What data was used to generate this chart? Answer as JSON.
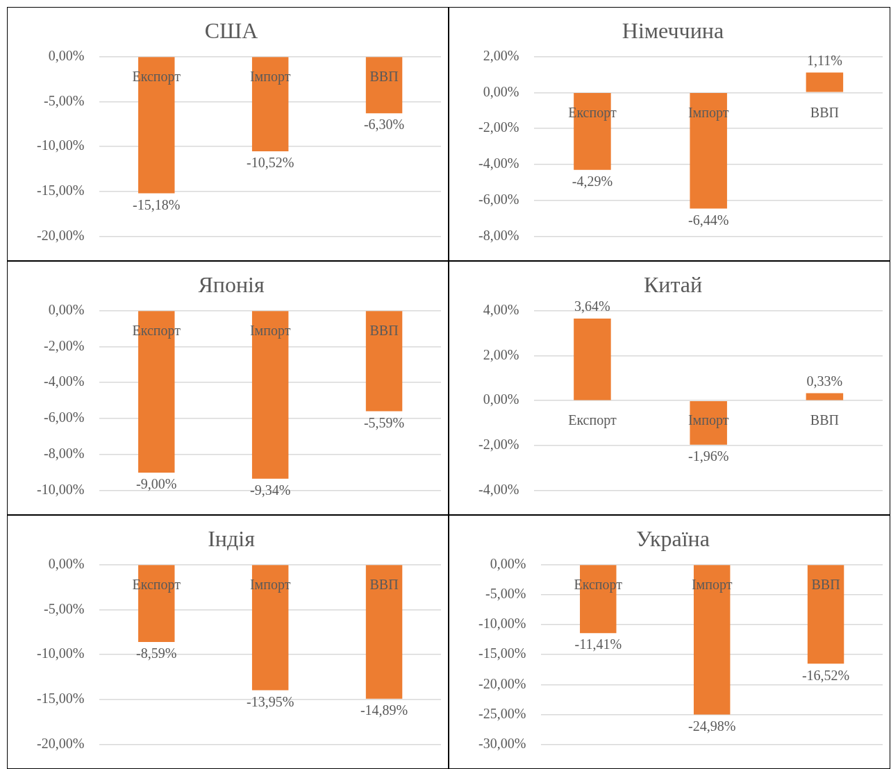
{
  "chart_data": [
    {
      "type": "bar",
      "title": "США",
      "categories": [
        "Експорт",
        "Імпорт",
        "ВВП"
      ],
      "values": [
        -15.18,
        -10.52,
        -6.3
      ],
      "value_labels": [
        "-15,18%",
        "-10,52%",
        "-6,30%"
      ],
      "color": "#ed7d31",
      "ylim": [
        -20,
        0
      ],
      "yticks": [
        {
          "value": 0,
          "label": "0,00%"
        },
        {
          "value": -5,
          "label": "-5,00%"
        },
        {
          "value": -10,
          "label": "-10,00%"
        },
        {
          "value": -15,
          "label": "-15,00%"
        },
        {
          "value": -20,
          "label": "-20,00%"
        }
      ],
      "grid": "y",
      "legend": false
    },
    {
      "type": "bar",
      "title": "Німеччина",
      "categories": [
        "Експорт",
        "Імпорт",
        "ВВП"
      ],
      "values": [
        -4.29,
        -6.44,
        1.11
      ],
      "value_labels": [
        "-4,29%",
        "-6,44%",
        "1,11%"
      ],
      "color": "#ed7d31",
      "ylim": [
        -8,
        2
      ],
      "yticks": [
        {
          "value": 2,
          "label": "2,00%"
        },
        {
          "value": 0,
          "label": "0,00%"
        },
        {
          "value": -2,
          "label": "-2,00%"
        },
        {
          "value": -4,
          "label": "-4,00%"
        },
        {
          "value": -6,
          "label": "-6,00%"
        },
        {
          "value": -8,
          "label": "-8,00%"
        }
      ],
      "grid": "y",
      "legend": false
    },
    {
      "type": "bar",
      "title": "Японія",
      "categories": [
        "Експорт",
        "Імпорт",
        "ВВП"
      ],
      "values": [
        -9.0,
        -9.34,
        -5.59
      ],
      "value_labels": [
        "-9,00%",
        "-9,34%",
        "-5,59%"
      ],
      "color": "#ed7d31",
      "ylim": [
        -10,
        0
      ],
      "yticks": [
        {
          "value": 0,
          "label": "0,00%"
        },
        {
          "value": -2,
          "label": "-2,00%"
        },
        {
          "value": -4,
          "label": "-4,00%"
        },
        {
          "value": -6,
          "label": "-6,00%"
        },
        {
          "value": -8,
          "label": "-8,00%"
        },
        {
          "value": -10,
          "label": "-10,00%"
        }
      ],
      "grid": "y",
      "legend": false
    },
    {
      "type": "bar",
      "title": "Китай",
      "categories": [
        "Експорт",
        "Імпорт",
        "ВВП"
      ],
      "values": [
        3.64,
        -1.96,
        0.33
      ],
      "value_labels": [
        "3,64%",
        "-1,96%",
        "0,33%"
      ],
      "color": "#ed7d31",
      "ylim": [
        -4,
        4
      ],
      "yticks": [
        {
          "value": 4,
          "label": "4,00%"
        },
        {
          "value": 2,
          "label": "2,00%"
        },
        {
          "value": 0,
          "label": "0,00%"
        },
        {
          "value": -2,
          "label": "-2,00%"
        },
        {
          "value": -4,
          "label": "-4,00%"
        }
      ],
      "grid": "y",
      "legend": false
    },
    {
      "type": "bar",
      "title": "Індія",
      "categories": [
        "Експорт",
        "Імпорт",
        "ВВП"
      ],
      "values": [
        -8.59,
        -13.95,
        -14.89
      ],
      "value_labels": [
        "-8,59%",
        "-13,95%",
        "-14,89%"
      ],
      "color": "#ed7d31",
      "ylim": [
        -20,
        0
      ],
      "yticks": [
        {
          "value": 0,
          "label": "0,00%"
        },
        {
          "value": -5,
          "label": "-5,00%"
        },
        {
          "value": -10,
          "label": "-10,00%"
        },
        {
          "value": -15,
          "label": "-15,00%"
        },
        {
          "value": -20,
          "label": "-20,00%"
        }
      ],
      "grid": "y",
      "legend": false
    },
    {
      "type": "bar",
      "title": "Україна",
      "categories": [
        "Експорт",
        "Імпорт",
        "ВВП"
      ],
      "values": [
        -11.41,
        -24.98,
        -16.52
      ],
      "value_labels": [
        "-11,41%",
        "-24,98%",
        "-16,52%"
      ],
      "color": "#ed7d31",
      "ylim": [
        -30,
        0
      ],
      "yticks": [
        {
          "value": 0,
          "label": "0,00%"
        },
        {
          "value": -5,
          "label": "-5,00%"
        },
        {
          "value": -10,
          "label": "-10,00%"
        },
        {
          "value": -15,
          "label": "-15,00%"
        },
        {
          "value": -20,
          "label": "-20,00%"
        },
        {
          "value": -25,
          "label": "-25,00%"
        },
        {
          "value": -30,
          "label": "-30,00%"
        }
      ],
      "grid": "y",
      "legend": false
    }
  ]
}
